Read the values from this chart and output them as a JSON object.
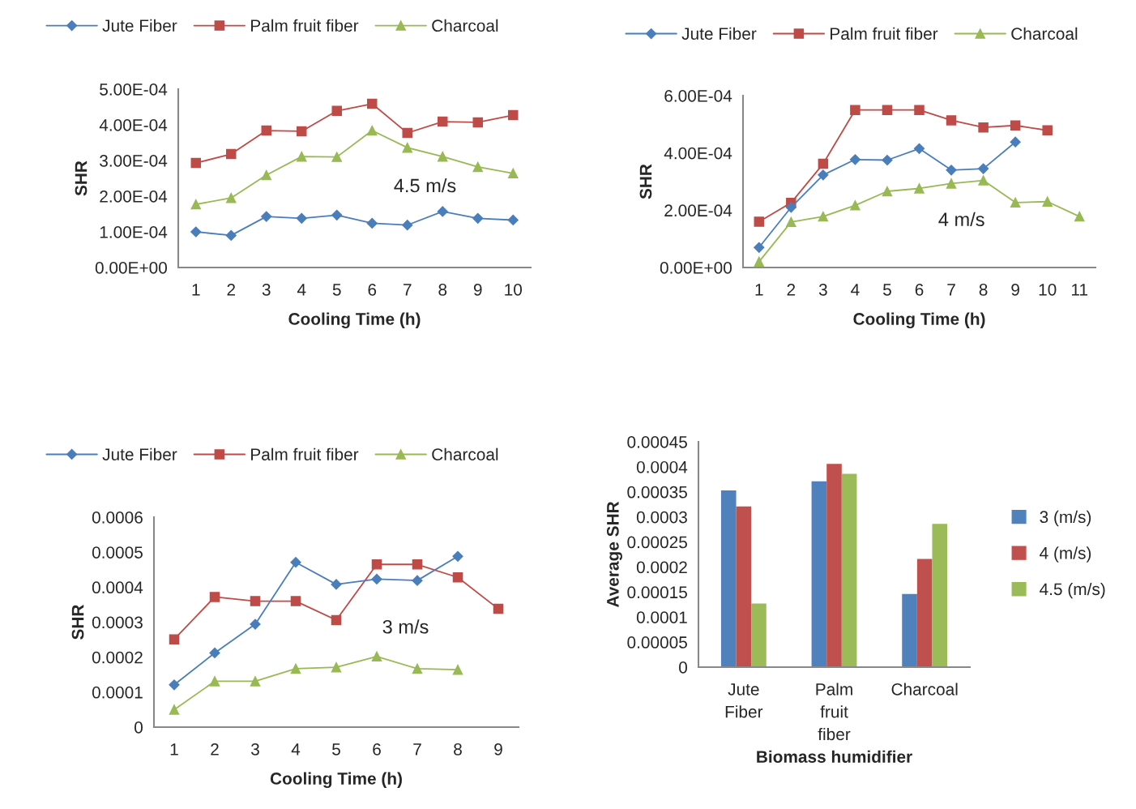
{
  "chart_data": [
    {
      "type": "line",
      "xlabel": "Cooling Time (h)",
      "ylabel": "SHR",
      "annotations": [
        "4.5 m/s"
      ],
      "legend": "top",
      "line_style": "solid",
      "grid": false,
      "categories": [
        "1",
        "2",
        "3",
        "4",
        "5",
        "6",
        "7",
        "8",
        "9",
        "10"
      ],
      "ylim": [
        0,
        0.0005
      ],
      "yticks": [
        {
          "value": 0,
          "label": "0.00E+00"
        },
        {
          "value": 0.0001,
          "label": "1.00E-04"
        },
        {
          "value": 0.0002,
          "label": "2.00E-04"
        },
        {
          "value": 0.0003,
          "label": "3.00E-04"
        },
        {
          "value": 0.0004,
          "label": "4.00E-04"
        },
        {
          "value": 0.0005,
          "label": "5.00E-04"
        }
      ],
      "series": [
        {
          "name": "Jute Fiber",
          "color": "#4a7ebb",
          "marker": "diamond",
          "values": [
            0.0001,
            9e-05,
            0.000143,
            0.000138,
            0.000147,
            0.000124,
            0.000119,
            0.000157,
            0.000138,
            0.000133
          ]
        },
        {
          "name": "Palm fruit fiber",
          "color": "#be4b48",
          "marker": "square",
          "values": [
            0.000293,
            0.000318,
            0.000384,
            0.000382,
            0.000439,
            0.000459,
            0.000377,
            0.000409,
            0.000407,
            0.000427
          ]
        },
        {
          "name": "Charcoal",
          "color": "#98b954",
          "marker": "triangle",
          "values": [
            0.000177,
            0.000195,
            0.000259,
            0.000311,
            0.00031,
            0.000384,
            0.000336,
            0.000311,
            0.000282,
            0.000264
          ]
        }
      ]
    },
    {
      "type": "line",
      "xlabel": "Cooling Time (h)",
      "ylabel": "SHR",
      "annotations": [
        "4 m/s"
      ],
      "legend": "top",
      "line_style": "solid",
      "grid": false,
      "categories": [
        "1",
        "2",
        "3",
        "4",
        "5",
        "6",
        "7",
        "8",
        "9",
        "10",
        "11"
      ],
      "ylim": [
        0,
        0.0006
      ],
      "yticks": [
        {
          "value": 0,
          "label": "0.00E+00"
        },
        {
          "value": 0.0002,
          "label": "2.00E-04"
        },
        {
          "value": 0.0004,
          "label": "4.00E-04"
        },
        {
          "value": 0.0006,
          "label": "6.00E-04"
        }
      ],
      "series": [
        {
          "name": "Jute Fiber",
          "color": "#4a7ebb",
          "marker": "diamond",
          "values": [
            7e-05,
            0.00021,
            0.000323,
            0.000377,
            0.000375,
            0.000415,
            0.00034,
            0.000345,
            0.000438,
            null,
            null
          ]
        },
        {
          "name": "Palm fruit fiber",
          "color": "#be4b48",
          "marker": "square",
          "values": [
            0.00016,
            0.000226,
            0.000362,
            0.00055,
            0.00055,
            0.00055,
            0.000514,
            0.000489,
            0.000496,
            0.000479,
            null
          ]
        },
        {
          "name": "Charcoal",
          "color": "#98b954",
          "marker": "triangle",
          "values": [
            2e-05,
            0.000159,
            0.000178,
            0.000217,
            0.000266,
            0.000276,
            0.000293,
            0.000304,
            0.000227,
            0.00023,
            0.000178
          ]
        }
      ]
    },
    {
      "type": "line",
      "xlabel": "Cooling Time (h)",
      "ylabel": "SHR",
      "annotations": [
        "3 m/s"
      ],
      "legend": "top",
      "line_style": "solid",
      "grid": false,
      "categories": [
        "1",
        "2",
        "3",
        "4",
        "5",
        "6",
        "7",
        "8",
        "9"
      ],
      "ylim": [
        0,
        0.0006
      ],
      "yticks": [
        0,
        0.0001,
        0.0002,
        0.0003,
        0.0004,
        0.0005,
        0.0006
      ],
      "series": [
        {
          "name": "Jute Fiber",
          "color": "#4a7ebb",
          "marker": "diamond",
          "values": [
            0.000121,
            0.000212,
            0.000294,
            0.000471,
            0.000408,
            0.000423,
            0.000419,
            0.000488,
            null
          ]
        },
        {
          "name": "Palm fruit fiber",
          "color": "#be4b48",
          "marker": "square",
          "values": [
            0.000251,
            0.000372,
            0.00036,
            0.00036,
            0.000306,
            0.000465,
            0.000465,
            0.000428,
            0.000338
          ]
        },
        {
          "name": "Charcoal",
          "color": "#98b954",
          "marker": "triangle",
          "values": [
            5e-05,
            0.000131,
            0.000131,
            0.000167,
            0.000171,
            0.000202,
            0.000167,
            0.000164,
            null
          ]
        }
      ]
    },
    {
      "type": "bar",
      "xlabel": "Biomass humidifier",
      "ylabel": "Average SHR",
      "legend": "right",
      "grid": false,
      "categories": [
        "Jute\nFiber",
        "Palm\nfruit\nfiber",
        "Charcoal"
      ],
      "ylim": [
        0,
        0.00045
      ],
      "yticks": [
        0,
        {
          "value": 5e-05,
          "label": "0.00005"
        },
        0.0001,
        {
          "value": 0.00015,
          "label": "0.00015"
        },
        0.0002,
        {
          "value": 0.00025,
          "label": "0.00025"
        },
        0.0003,
        {
          "value": 0.00035,
          "label": "0.00035"
        },
        0.0004,
        {
          "value": 0.00045,
          "label": "0.00045"
        }
      ],
      "series": [
        {
          "name": "3 (m/s)",
          "color": "#4f81bd",
          "values": [
            0.000353,
            0.000371,
            0.000146
          ]
        },
        {
          "name": "4 (m/s)",
          "color": "#c0504d",
          "values": [
            0.000321,
            0.000406,
            0.000216
          ]
        },
        {
          "name": "4.5 (m/s)",
          "color": "#9bbb59",
          "values": [
            0.000127,
            0.000386,
            0.000286
          ]
        }
      ]
    }
  ]
}
